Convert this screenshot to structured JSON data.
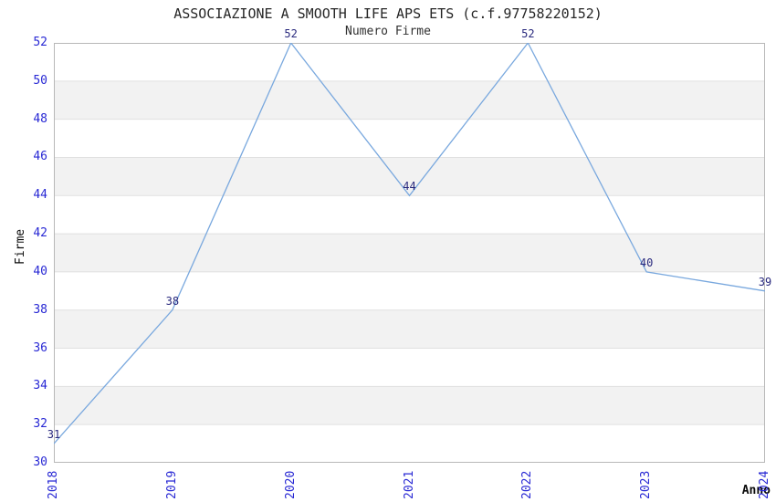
{
  "chart_data": {
    "type": "line",
    "title": "ASSOCIAZIONE A SMOOTH LIFE APS ETS (c.f.97758220152)",
    "subtitle": "Numero Firme",
    "xlabel": "Anno",
    "ylabel": "Firme",
    "categories": [
      "2018",
      "2019",
      "2020",
      "2021",
      "2022",
      "2023",
      "2024"
    ],
    "values": [
      31,
      38,
      52,
      44,
      52,
      40,
      39
    ],
    "ylim": [
      30,
      52
    ],
    "ytick_step": 2,
    "grid": "horizontal-bands-alternating",
    "legend": "none",
    "colors": {
      "line": "#79a8de",
      "band_gray": "#f2f2f2",
      "band_white": "#ffffff",
      "gridline": "#e0e0e0",
      "plot_border": "#b8b8b8",
      "tick_label": "#2828d4",
      "data_label": "#28287d",
      "title_text": "#262626"
    }
  }
}
